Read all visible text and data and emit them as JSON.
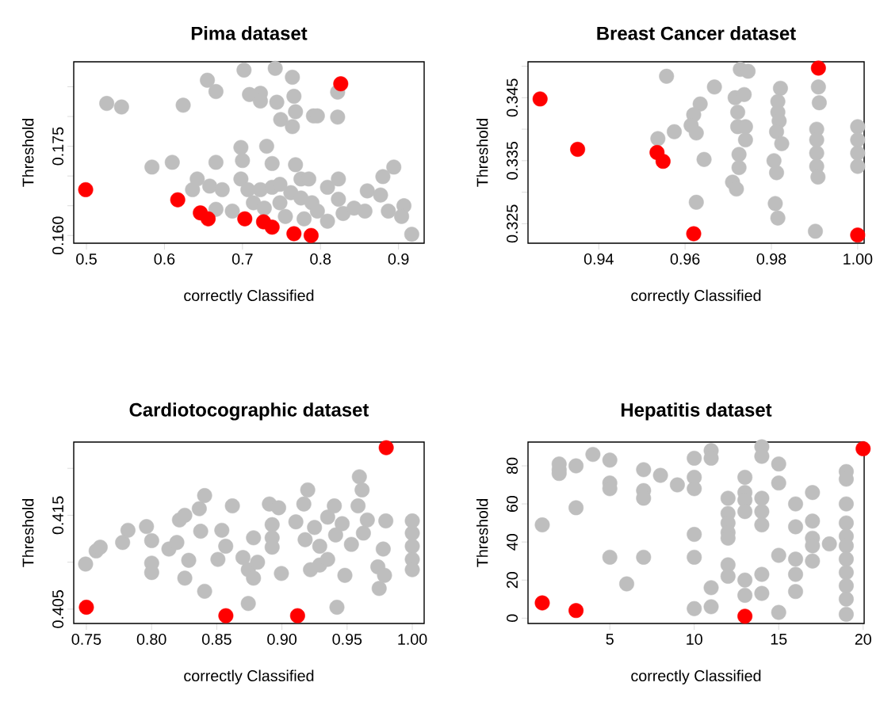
{
  "chart_data": [
    {
      "type": "scatter",
      "title": "Pima dataset",
      "xlabel": "correctly Classified",
      "ylabel": "Threshold",
      "marker": "circle",
      "xlim": [
        0.4837,
        0.9329
      ],
      "ylim": [
        0.1587,
        0.1892
      ],
      "xticks": [
        0.5,
        0.6,
        0.7,
        0.8,
        0.9
      ],
      "yticks": [
        {
          "value": 0.16,
          "label": "0.160"
        },
        {
          "value": 0.165,
          "label": null
        },
        {
          "value": 0.17,
          "label": null
        },
        0.175,
        {
          "value": 0.18,
          "label": null
        },
        {
          "value": 0.185,
          "label": null
        }
      ],
      "series": [
        {
          "color": "#bebebe",
          "x": [
            0.526,
            0.545,
            0.624,
            0.655,
            0.666,
            0.702,
            0.742,
            0.764,
            0.709,
            0.723,
            0.723,
            0.744,
            0.766,
            0.768,
            0.749,
            0.764,
            0.791,
            0.796,
            0.822,
            0.822,
            0.584,
            0.61,
            0.666,
            0.698,
            0.7,
            0.731,
            0.738,
            0.768,
            0.894,
            0.88,
            0.642,
            0.636,
            0.658,
            0.674,
            0.666,
            0.687,
            0.698,
            0.707,
            0.723,
            0.738,
            0.748,
            0.762,
            0.775,
            0.785,
            0.775,
            0.789,
            0.796,
            0.809,
            0.823,
            0.823,
            0.809,
            0.829,
            0.843,
            0.857,
            0.86,
            0.877,
            0.887,
            0.907,
            0.904,
            0.917,
            0.714,
            0.728,
            0.748,
            0.755,
            0.779
          ],
          "values": [
            0.1822,
            0.1816,
            0.1819,
            0.1861,
            0.1842,
            0.1878,
            0.1881,
            0.1866,
            0.1837,
            0.1839,
            0.1826,
            0.1824,
            0.1834,
            0.1808,
            0.1795,
            0.1783,
            0.1801,
            0.1801,
            0.1799,
            0.1841,
            0.1715,
            0.1723,
            0.1723,
            0.1748,
            0.1726,
            0.175,
            0.1721,
            0.1719,
            0.1715,
            0.1699,
            0.1695,
            0.1677,
            0.1683,
            0.1677,
            0.1644,
            0.1641,
            0.1695,
            0.1677,
            0.1677,
            0.1681,
            0.1686,
            0.1672,
            0.1695,
            0.1695,
            0.1663,
            0.1655,
            0.1641,
            0.1681,
            0.1695,
            0.1661,
            0.1624,
            0.1637,
            0.1646,
            0.1641,
            0.1675,
            0.1668,
            0.1641,
            0.165,
            0.1632,
            0.1602,
            0.1655,
            0.1646,
            0.1655,
            0.1632,
            0.1628
          ]
        },
        {
          "color": "#ff0000",
          "x": [
            0.499,
            0.617,
            0.646,
            0.656,
            0.703,
            0.727,
            0.738,
            0.766,
            0.788,
            0.826
          ],
          "values": [
            0.1677,
            0.166,
            0.1638,
            0.1628,
            0.1628,
            0.1623,
            0.1614,
            0.1603,
            0.16,
            0.1855
          ]
        }
      ]
    },
    {
      "type": "scatter",
      "title": "Breast Cancer dataset",
      "xlabel": "correctly Classified",
      "ylabel": "Threshold",
      "marker": "circle",
      "xlim": [
        0.9236,
        1.0015
      ],
      "ylim": [
        0.3219,
        0.3507
      ],
      "xticks": [
        0.94,
        0.96,
        0.98,
        "1.00"
      ],
      "yticks": [
        0.325,
        {
          "value": 0.33,
          "label": null
        },
        0.335,
        {
          "value": 0.34,
          "label": null
        },
        0.345,
        {
          "value": 0.35,
          "label": null
        }
      ],
      "series": [
        {
          "color": "#bebebe",
          "x": [
            0.9557,
            0.9668,
            0.9575,
            0.9537,
            0.9635,
            0.962,
            0.9614,
            0.9626,
            0.9644,
            0.9626,
            0.971,
            0.9719,
            0.9728,
            0.9746,
            0.9716,
            0.9737,
            0.9722,
            0.9722,
            0.974,
            0.974,
            0.9725,
            0.9725,
            0.9821,
            0.9815,
            0.9815,
            0.9818,
            0.9812,
            0.9824,
            0.9806,
            0.9812,
            0.9809,
            0.9815,
            0.9909,
            0.9911,
            0.9905,
            0.9905,
            0.9905,
            0.9905,
            0.9908,
            0.9902,
            1.0,
            1.0,
            1.0,
            1.0
          ],
          "values": [
            0.3484,
            0.3467,
            0.3396,
            0.3385,
            0.344,
            0.3423,
            0.3406,
            0.3394,
            0.3352,
            0.3284,
            0.3316,
            0.3305,
            0.3495,
            0.3492,
            0.345,
            0.3455,
            0.3427,
            0.3404,
            0.3404,
            0.3383,
            0.336,
            0.3339,
            0.3465,
            0.3444,
            0.3427,
            0.3413,
            0.3396,
            0.3377,
            0.335,
            0.3331,
            0.3282,
            0.3259,
            0.3467,
            0.3442,
            0.34,
            0.3383,
            0.3362,
            0.3341,
            0.3324,
            0.3238,
            0.3404,
            0.3383,
            0.3362,
            0.3341
          ]
        },
        {
          "color": "#ff0000",
          "x": [
            0.9264,
            0.9351,
            0.9535,
            0.9549,
            0.962,
            0.9909,
            1.0
          ],
          "values": [
            0.3448,
            0.3368,
            0.3363,
            0.3349,
            0.3234,
            0.3497,
            0.3232
          ]
        }
      ]
    },
    {
      "type": "scatter",
      "title": "Cardiotocographic dataset",
      "xlabel": "correctly Classified",
      "ylabel": "Threshold",
      "marker": "circle",
      "xlim": [
        0.7403,
        1.0091
      ],
      "ylim": [
        0.40347,
        0.4228
      ],
      "xticks": [
        0.75,
        "0.80",
        0.85,
        "0.90",
        0.95,
        "1.00"
      ],
      "yticks": [
        0.405,
        {
          "value": 0.41,
          "label": null
        },
        0.415,
        {
          "value": 0.42,
          "label": null
        }
      ],
      "series": [
        {
          "color": "#bebebe",
          "x": [
            0.7494,
            0.7575,
            0.7606,
            0.7778,
            0.7819,
            0.7961,
            0.8001,
            0.8001,
            0.8001,
            0.8133,
            0.8194,
            0.8214,
            0.8255,
            0.8285,
            0.8255,
            0.8377,
            0.8366,
            0.8407,
            0.8407,
            0.862,
            0.8539,
            0.8569,
            0.8509,
            0.8701,
            0.8742,
            0.8782,
            0.8813,
            0.8782,
            0.8742,
            0.8904,
            0.8975,
            0.8925,
            0.8925,
            0.8925,
            0.8996,
            0.9107,
            0.9198,
            0.9168,
            0.925,
            0.9178,
            0.929,
            0.9351,
            0.9402,
            0.9219,
            0.929,
            0.9351,
            0.9412,
            0.9462,
            0.9533,
            0.9483,
            0.9422,
            0.9594,
            0.9615,
            0.9584,
            0.9655,
            0.9625,
            0.9797,
            0.9777,
            0.9736,
            0.9787,
            0.9746,
            1.0,
            1.0,
            1.0,
            1.0,
            1.0
          ],
          "values": [
            0.4098,
            0.4112,
            0.4116,
            0.4121,
            0.4134,
            0.4138,
            0.4123,
            0.4099,
            0.4089,
            0.4114,
            0.4121,
            0.4145,
            0.415,
            0.4102,
            0.4083,
            0.4133,
            0.4157,
            0.4171,
            0.4069,
            0.416,
            0.4134,
            0.4117,
            0.4103,
            0.4105,
            0.4092,
            0.4083,
            0.41,
            0.4126,
            0.4056,
            0.4162,
            0.4158,
            0.414,
            0.4126,
            0.4116,
            0.4088,
            0.4143,
            0.4177,
            0.4162,
            0.4137,
            0.4124,
            0.4117,
            0.4148,
            0.416,
            0.4092,
            0.4097,
            0.4103,
            0.4129,
            0.4141,
            0.4119,
            0.4086,
            0.4052,
            0.4191,
            0.4177,
            0.416,
            0.4145,
            0.4131,
            0.4144,
            0.4114,
            0.4095,
            0.4086,
            0.4072,
            0.4144,
            0.4131,
            0.4117,
            0.4103,
            0.4092
          ]
        },
        {
          "color": "#ff0000",
          "x": [
            0.75,
            0.857,
            0.912,
            0.98
          ],
          "values": [
            0.4052,
            0.4043,
            0.4043,
            0.4222
          ]
        }
      ]
    },
    {
      "type": "scatter",
      "title": "Hepatitis dataset",
      "xlabel": "correctly Classified",
      "ylabel": "Threshold",
      "marker": "circle",
      "xlim": [
        0.156,
        20.06
      ],
      "ylim": [
        -2.8,
        92.5
      ],
      "xticks": [
        5,
        10,
        15,
        20
      ],
      "yticks": [
        0,
        20,
        40,
        60,
        80
      ],
      "series": [
        {
          "color": "#bebebe",
          "x": [
            1,
            2,
            2,
            2,
            3,
            3,
            4,
            5,
            5,
            5,
            5,
            6,
            7,
            7,
            7,
            7,
            8,
            9,
            10,
            10,
            10,
            10,
            10,
            10,
            11,
            11,
            11,
            11,
            12,
            12,
            12,
            12,
            12,
            12,
            12,
            13,
            13,
            13,
            13,
            13,
            13,
            14,
            14,
            14,
            14,
            14,
            14,
            14,
            15,
            15,
            15,
            15,
            16,
            16,
            16,
            16,
            16,
            17,
            17,
            17,
            17,
            17,
            18,
            19,
            19,
            19,
            19,
            19,
            19,
            19,
            19,
            19,
            19,
            19
          ],
          "values": [
            49,
            78,
            76,
            81,
            80,
            58,
            86,
            83,
            71,
            68,
            32,
            18,
            78,
            67,
            63,
            32,
            75,
            70,
            84,
            74,
            68,
            44,
            32,
            5,
            88,
            84,
            16,
            6,
            63,
            55,
            50,
            45,
            42,
            28,
            22,
            74,
            66,
            62,
            56,
            20,
            12,
            90,
            85,
            63,
            56,
            49,
            23,
            13,
            81,
            71,
            33,
            3,
            60,
            48,
            31,
            23,
            14,
            66,
            51,
            42,
            38,
            30,
            39,
            77,
            73,
            60,
            50,
            43,
            38,
            31,
            24,
            17,
            10,
            2
          ]
        },
        {
          "color": "#ff0000",
          "x": [
            1,
            3,
            13,
            20
          ],
          "values": [
            8,
            4,
            1,
            89
          ]
        }
      ]
    }
  ]
}
